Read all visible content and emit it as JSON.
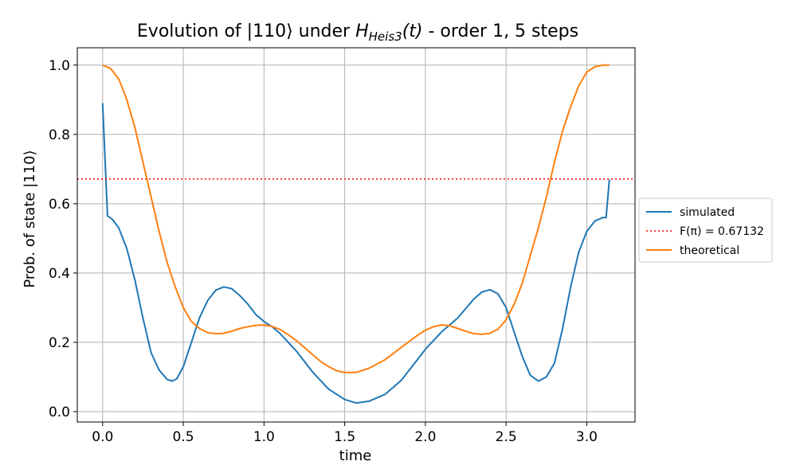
{
  "chart_data": {
    "type": "line",
    "title": {
      "prefix": "Evolution of |110⟩ under ",
      "h_main": "H",
      "h_sub": "Heis3",
      "suffix_t": "(t)",
      "suffix": " - order 1, 5 steps"
    },
    "xlabel": "time",
    "ylabel": "Prob. of state |110⟩",
    "xlim": [
      -0.157,
      3.299
    ],
    "ylim": [
      -0.03,
      1.05
    ],
    "xticks": [
      0.0,
      0.5,
      1.0,
      1.5,
      2.0,
      2.5,
      3.0
    ],
    "xtick_labels": [
      "0.0",
      "0.5",
      "1.0",
      "1.5",
      "2.0",
      "2.5",
      "3.0"
    ],
    "yticks": [
      0.0,
      0.2,
      0.4,
      0.6,
      0.8,
      1.0
    ],
    "ytick_labels": [
      "0.0",
      "0.2",
      "0.4",
      "0.6",
      "0.8",
      "1.0"
    ],
    "grid": true,
    "legend_placement": "right-outside",
    "series": [
      {
        "name": "simulated",
        "color": "#1f77b4",
        "style": "solid",
        "x": [
          0.0,
          0.03,
          0.06,
          0.1,
          0.15,
          0.2,
          0.25,
          0.3,
          0.35,
          0.4,
          0.43,
          0.46,
          0.5,
          0.55,
          0.6,
          0.65,
          0.7,
          0.75,
          0.8,
          0.85,
          0.9,
          0.95,
          1.0,
          1.05,
          1.1,
          1.2,
          1.3,
          1.4,
          1.5,
          1.57,
          1.65,
          1.75,
          1.85,
          1.95,
          2.0,
          2.1,
          2.2,
          2.3,
          2.35,
          2.4,
          2.45,
          2.5,
          2.55,
          2.6,
          2.65,
          2.7,
          2.75,
          2.8,
          2.85,
          2.9,
          2.95,
          3.0,
          3.05,
          3.1,
          3.12,
          3.14
        ],
        "y": [
          0.89,
          0.565,
          0.555,
          0.53,
          0.47,
          0.38,
          0.27,
          0.17,
          0.12,
          0.093,
          0.088,
          0.095,
          0.13,
          0.2,
          0.27,
          0.32,
          0.35,
          0.36,
          0.355,
          0.335,
          0.31,
          0.28,
          0.26,
          0.245,
          0.225,
          0.175,
          0.115,
          0.065,
          0.035,
          0.025,
          0.03,
          0.05,
          0.09,
          0.15,
          0.18,
          0.23,
          0.27,
          0.325,
          0.345,
          0.352,
          0.34,
          0.3,
          0.23,
          0.16,
          0.105,
          0.088,
          0.1,
          0.14,
          0.24,
          0.36,
          0.46,
          0.52,
          0.55,
          0.56,
          0.56,
          0.67
        ]
      },
      {
        "name": "F(π) = 0.67132",
        "color": "#ff0000",
        "style": "dotted",
        "y": 0.67132
      },
      {
        "name": "theoretical",
        "color": "#ff7f0e",
        "style": "solid",
        "x": [
          0.0,
          0.05,
          0.1,
          0.15,
          0.2,
          0.25,
          0.3,
          0.35,
          0.4,
          0.45,
          0.5,
          0.55,
          0.6,
          0.65,
          0.7,
          0.75,
          0.8,
          0.85,
          0.9,
          0.95,
          1.0,
          1.05,
          1.1,
          1.15,
          1.2,
          1.25,
          1.3,
          1.35,
          1.4,
          1.45,
          1.5,
          1.57,
          1.65,
          1.75,
          1.85,
          1.95,
          2.0,
          2.05,
          2.1,
          2.15,
          2.2,
          2.25,
          2.3,
          2.35,
          2.4,
          2.45,
          2.5,
          2.55,
          2.6,
          2.65,
          2.7,
          2.75,
          2.8,
          2.85,
          2.9,
          2.95,
          3.0,
          3.05,
          3.1,
          3.14
        ],
        "y": [
          1.0,
          0.99,
          0.96,
          0.9,
          0.82,
          0.72,
          0.62,
          0.52,
          0.43,
          0.36,
          0.3,
          0.26,
          0.24,
          0.228,
          0.225,
          0.226,
          0.232,
          0.24,
          0.245,
          0.249,
          0.25,
          0.246,
          0.237,
          0.222,
          0.205,
          0.185,
          0.165,
          0.145,
          0.13,
          0.118,
          0.113,
          0.113,
          0.125,
          0.15,
          0.185,
          0.22,
          0.235,
          0.245,
          0.25,
          0.248,
          0.24,
          0.232,
          0.225,
          0.223,
          0.226,
          0.238,
          0.265,
          0.31,
          0.37,
          0.45,
          0.53,
          0.62,
          0.72,
          0.81,
          0.88,
          0.94,
          0.98,
          0.995,
          1.0,
          1.0
        ]
      }
    ]
  }
}
